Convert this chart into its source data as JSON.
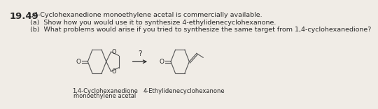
{
  "problem_number": "19.49",
  "main_text": "1,4-Cyclohexanedione monoethylene acetal is commercially available.",
  "part_a": "(a)  Show how you would use it to synthesize 4-ethylidenecyclohexanone.",
  "part_b": "(b)  What problems would arise if you tried to synthesize the same target from 1,4-cyclohexanedione?",
  "label_left_1": "1,4-Cyclohexanedione",
  "label_left_2": "monoethylene acetal",
  "label_right": "4-Ethylidenecyclohexanone",
  "arrow_label": "?",
  "bg_color": "#f0ece6",
  "text_color": "#2a2a2a",
  "font_size_number": 9.5,
  "font_size_text": 6.8,
  "font_size_label": 6.0
}
